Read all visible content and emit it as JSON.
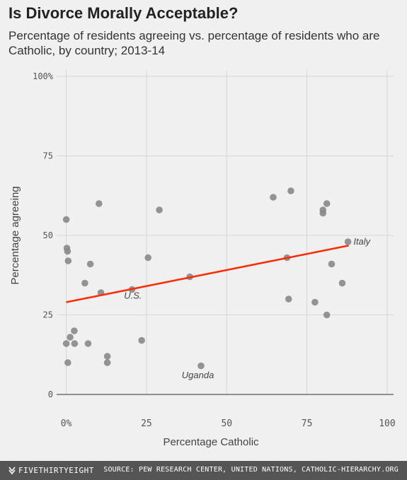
{
  "header": {
    "title": "Is Divorce Morally Acceptable?",
    "subtitle": "Percentage of residents agreeing vs. percentage of residents who are Catholic, by country; 2013-14"
  },
  "footer": {
    "brand": "FIVETHIRTYEIGHT",
    "brand_icon": "fivethirtyeight-logo-icon",
    "source": "SOURCE: PEW RESEARCH CENTER, UNITED NATIONS, CATHOLIC-HIERARCHY.ORG"
  },
  "chart_data": {
    "type": "scatter",
    "title": "Is Divorce Morally Acceptable?",
    "subtitle": "Percentage of residents agreeing vs. percentage of residents who are Catholic, by country; 2013-14",
    "xlabel": "Percentage Catholic",
    "ylabel": "Percentage agreeing",
    "xlim": [
      -3,
      102
    ],
    "ylim": [
      0,
      100
    ],
    "x_ticks": [
      0,
      25,
      50,
      75,
      100
    ],
    "x_tick_labels": [
      "0%",
      "25",
      "50",
      "75",
      "100"
    ],
    "y_ticks": [
      0,
      25,
      50,
      75,
      100
    ],
    "y_tick_labels": [
      "0",
      "25",
      "50",
      "75",
      "100%"
    ],
    "grid": true,
    "point_color": "#888888",
    "trend_color": "#ff2d00",
    "points": [
      {
        "x": 0.0,
        "y": 55
      },
      {
        "x": 0.2,
        "y": 46
      },
      {
        "x": 0.4,
        "y": 45
      },
      {
        "x": 0.6,
        "y": 42
      },
      {
        "x": 0.0,
        "y": 16
      },
      {
        "x": 0.5,
        "y": 10
      },
      {
        "x": 1.2,
        "y": 18
      },
      {
        "x": 2.5,
        "y": 20
      },
      {
        "x": 2.6,
        "y": 16
      },
      {
        "x": 5.8,
        "y": 35
      },
      {
        "x": 6.8,
        "y": 16
      },
      {
        "x": 7.5,
        "y": 41
      },
      {
        "x": 10.2,
        "y": 60
      },
      {
        "x": 10.8,
        "y": 32
      },
      {
        "x": 12.8,
        "y": 12
      },
      {
        "x": 12.8,
        "y": 10
      },
      {
        "x": 20.5,
        "y": 33
      },
      {
        "x": 23.5,
        "y": 17
      },
      {
        "x": 25.5,
        "y": 43
      },
      {
        "x": 29.0,
        "y": 58
      },
      {
        "x": 38.5,
        "y": 37
      },
      {
        "x": 42.0,
        "y": 9
      },
      {
        "x": 64.5,
        "y": 62
      },
      {
        "x": 68.8,
        "y": 43
      },
      {
        "x": 69.3,
        "y": 30
      },
      {
        "x": 70.0,
        "y": 64
      },
      {
        "x": 77.5,
        "y": 29
      },
      {
        "x": 80.0,
        "y": 57
      },
      {
        "x": 80.0,
        "y": 58
      },
      {
        "x": 81.2,
        "y": 60
      },
      {
        "x": 81.2,
        "y": 25
      },
      {
        "x": 82.7,
        "y": 41
      },
      {
        "x": 86.0,
        "y": 35
      },
      {
        "x": 87.8,
        "y": 48
      }
    ],
    "trend_line": {
      "x": [
        0,
        88
      ],
      "y": [
        29,
        46.8
      ]
    },
    "annotations": [
      {
        "text": "Italy",
        "x": 89.5,
        "y": 48,
        "anchor": "start"
      },
      {
        "text": "U.S.",
        "x": 18.0,
        "y": 31,
        "anchor": "start"
      },
      {
        "text": "Uganda",
        "x": 36.0,
        "y": 6,
        "anchor": "start"
      }
    ]
  }
}
